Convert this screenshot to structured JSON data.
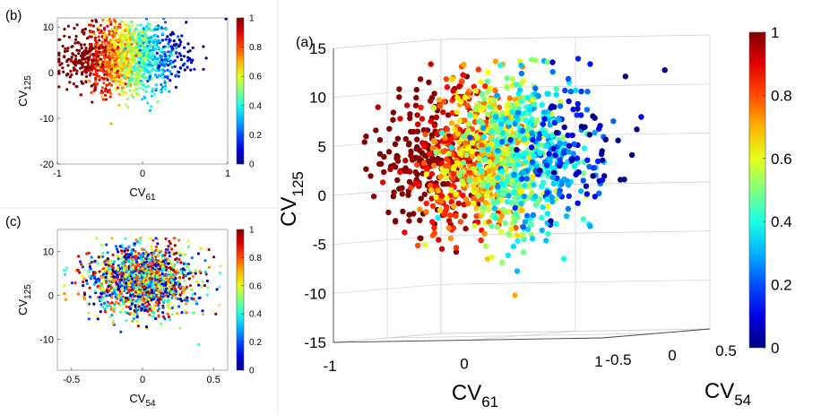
{
  "chart_data": [
    {
      "id": "a",
      "panel_label": "(a)",
      "type": "scatter",
      "projection": "3d",
      "xlabel": "CV",
      "xlabel_sub": "61",
      "ylabel": "CV",
      "ylabel_sub": "125",
      "zlabel": "CV",
      "zlabel_sub": "54",
      "xlim": [
        -1,
        1
      ],
      "ylim": [
        -15,
        15
      ],
      "zlim": [
        -0.5,
        0.5
      ],
      "xticks": [
        "-1",
        "0",
        "1"
      ],
      "yticks": [
        "-15",
        "-10",
        "-5",
        "0",
        "5",
        "10",
        "15"
      ],
      "zticks": [
        "-0.5",
        "0",
        "0.5"
      ],
      "color_variable": "CV61 (reversed)",
      "colorbar": {
        "min": 0,
        "max": 1,
        "ticks": [
          "0",
          "0.2",
          "0.4",
          "0.6",
          "0.8",
          "1"
        ]
      },
      "points": 1500,
      "x_distribution": {
        "mean": -0.2,
        "sd": 0.33
      },
      "y_distribution": {
        "mean": 3.5,
        "sd": 3.8
      }
    },
    {
      "id": "b",
      "panel_label": "(b)",
      "type": "scatter",
      "xlabel": "CV",
      "xlabel_sub": "61",
      "ylabel": "CV",
      "ylabel_sub": "125",
      "xlim": [
        -1,
        1
      ],
      "ylim": [
        -20,
        12
      ],
      "xticks": [
        "-1",
        "0",
        "1"
      ],
      "yticks": [
        "-20",
        "-10",
        "0",
        "10"
      ],
      "colorbar": {
        "min": 0,
        "max": 1,
        "ticks": [
          "0",
          "0.2",
          "0.4",
          "0.6",
          "0.8",
          "1"
        ]
      },
      "points": 1500,
      "x_distribution": {
        "mean": -0.2,
        "sd": 0.33
      },
      "y_distribution": {
        "mean": 3.5,
        "sd": 3.8
      }
    },
    {
      "id": "c",
      "panel_label": "(c)",
      "type": "scatter",
      "xlabel": "CV",
      "xlabel_sub": "54",
      "ylabel": "CV",
      "ylabel_sub": "125",
      "xlim": [
        -0.6,
        0.6
      ],
      "ylim": [
        -17,
        15
      ],
      "xticks": [
        "-0.5",
        "0",
        "0.5"
      ],
      "yticks": [
        "-10",
        "0",
        "10"
      ],
      "colorbar": {
        "min": 0,
        "max": 1,
        "ticks": [
          "0",
          "0.2",
          "0.4",
          "0.6",
          "0.8",
          "1"
        ]
      },
      "points": 1500,
      "x_distribution": {
        "mean": 0.0,
        "sd": 0.18
      },
      "y_distribution": {
        "mean": 1.5,
        "sd": 4.2
      }
    }
  ]
}
